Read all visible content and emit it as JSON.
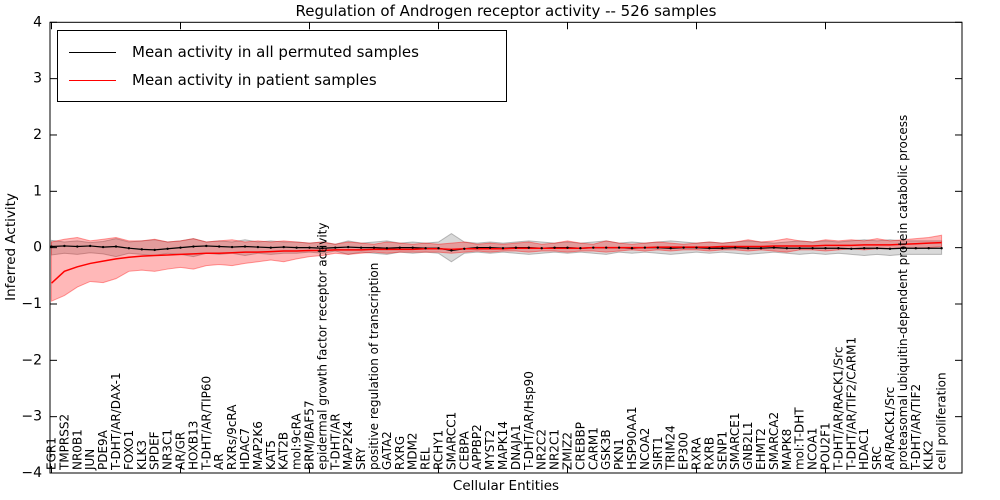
{
  "title": "Regulation of Androgen receptor activity -- 526 samples",
  "axes": {
    "xlabel": "Cellular Entities",
    "ylabel": "Inferred Activity"
  },
  "legend": {
    "items": [
      {
        "label": "Mean activity in all permuted samples",
        "color": "#000000"
      },
      {
        "label": "Mean activity in patient samples",
        "color": "#ff0000"
      }
    ],
    "position": "upper left"
  },
  "chart_data": {
    "type": "line",
    "title": "Regulation of Androgen receptor activity -- 526 samples",
    "xlabel": "Cellular Entities",
    "ylabel": "Inferred Activity",
    "ylim": [
      -4,
      4
    ],
    "yticks": [
      4,
      3,
      2,
      1,
      0,
      -1,
      -2,
      -3,
      -4
    ],
    "ytick_labels": [
      "4",
      "3",
      "2",
      "1",
      "0",
      "−1",
      "−2",
      "−3",
      "−4"
    ],
    "grid": false,
    "legend_position": "upper left",
    "categories": [
      "EGR1",
      "TMPRSS2",
      "NR0B1",
      "JUN",
      "PDE9A",
      "T-DHT/AR/DAX-1",
      "FOXO1",
      "KLK3",
      "SPDEF",
      "NR3C1",
      "AR/GR",
      "HOXB13",
      "T-DHT/AR/TIP60",
      "AR",
      "RXRs/9cRA",
      "HDAC7",
      "MAP2K6",
      "KAT5",
      "KAT2B",
      "mol:9cRA",
      "BRM/BAF57",
      "epidermal growth factor receptor activity",
      "T-DHT/AR",
      "MAP2K4",
      "SRY",
      "positive regulation of transcription",
      "GATA2",
      "RXRG",
      "MDM2",
      "REL",
      "RCHY1",
      "SMARCC1",
      "CEBPA",
      "APPBP2",
      "MYST2",
      "MAPK14",
      "DNAJA1",
      "T-DHT/AR/Hsp90",
      "NR2C2",
      "NR2C1",
      "ZMIZ2",
      "CREBBP",
      "CARM1",
      "GSK3B",
      "PKN1",
      "HSP90AA1",
      "NCOA2",
      "SIRT1",
      "TRIM24",
      "EP300",
      "RXRA",
      "RXRB",
      "SENP1",
      "SMARCE1",
      "GNB2L1",
      "EHMT2",
      "SMARCA2",
      "MAPK8",
      "mol:T-DHT",
      "NCOA1",
      "POU2F1",
      "T-DHT/AR/RACK1/Src",
      "T-DHT/AR/TIF2/CARM1",
      "HDAC1",
      "SRC",
      "AR/RACK1/Src",
      "proteasomal ubiquitin-dependent protein catabolic process",
      "T-DHT/AR/TIF2",
      "KLK2",
      "cell proliferation"
    ],
    "series": [
      {
        "name": "Mean activity in all permuted samples",
        "color": "#000000",
        "line_width": 1.2,
        "marker": true,
        "band_color": "rgba(128,128,128,0.30)",
        "band_edge": "rgba(110,110,110,0.45)",
        "values": [
          0.02,
          0.03,
          0.02,
          0.03,
          0.01,
          0.02,
          -0.01,
          -0.03,
          -0.04,
          -0.02,
          0.0,
          0.02,
          0.03,
          0.02,
          0.01,
          0.02,
          0.01,
          0.0,
          0.01,
          0.0,
          0.0,
          -0.01,
          0.0,
          0.01,
          0.0,
          0.0,
          -0.01,
          0.0,
          0.0,
          -0.01,
          -0.01,
          -0.05,
          -0.02,
          0.0,
          0.0,
          -0.01,
          0.0,
          0.0,
          -0.01,
          0.0,
          0.0,
          -0.01,
          0.0,
          0.0,
          0.0,
          -0.01,
          0.0,
          0.0,
          -0.01,
          0.0,
          0.0,
          -0.01,
          -0.01,
          0.0,
          -0.01,
          -0.01,
          0.0,
          -0.01,
          -0.01,
          -0.01,
          -0.01,
          -0.01,
          -0.02,
          -0.01,
          -0.01,
          -0.02,
          -0.01,
          -0.01,
          -0.01,
          -0.01
        ],
        "band_hi": [
          0.13,
          0.1,
          0.12,
          0.09,
          0.11,
          0.16,
          0.1,
          0.12,
          0.14,
          0.1,
          0.12,
          0.16,
          0.1,
          0.12,
          0.1,
          0.14,
          0.1,
          0.12,
          0.1,
          0.1,
          0.08,
          0.1,
          0.06,
          0.12,
          0.08,
          0.1,
          0.12,
          0.08,
          0.1,
          0.08,
          0.1,
          0.25,
          0.1,
          0.08,
          0.1,
          0.08,
          0.1,
          0.12,
          0.1,
          0.08,
          0.1,
          0.08,
          0.1,
          0.12,
          0.08,
          0.1,
          0.08,
          0.1,
          0.12,
          0.1,
          0.08,
          0.1,
          0.08,
          0.1,
          0.12,
          0.1,
          0.08,
          0.1,
          0.12,
          0.1,
          0.12,
          0.1,
          0.12,
          0.14,
          0.12,
          0.14,
          0.12,
          0.12,
          0.12,
          0.12
        ],
        "band_lo": [
          -0.13,
          -0.1,
          -0.12,
          -0.09,
          -0.11,
          -0.16,
          -0.1,
          -0.12,
          -0.14,
          -0.1,
          -0.12,
          -0.16,
          -0.1,
          -0.12,
          -0.1,
          -0.14,
          -0.1,
          -0.12,
          -0.1,
          -0.1,
          -0.08,
          -0.1,
          -0.06,
          -0.12,
          -0.08,
          -0.1,
          -0.12,
          -0.08,
          -0.1,
          -0.08,
          -0.1,
          -0.25,
          -0.1,
          -0.08,
          -0.1,
          -0.08,
          -0.1,
          -0.12,
          -0.1,
          -0.08,
          -0.1,
          -0.08,
          -0.1,
          -0.12,
          -0.08,
          -0.1,
          -0.08,
          -0.1,
          -0.12,
          -0.1,
          -0.08,
          -0.1,
          -0.08,
          -0.1,
          -0.12,
          -0.1,
          -0.08,
          -0.1,
          -0.12,
          -0.1,
          -0.12,
          -0.1,
          -0.12,
          -0.14,
          -0.12,
          -0.14,
          -0.12,
          -0.12,
          -0.12,
          -0.12
        ]
      },
      {
        "name": "Mean activity in patient samples",
        "color": "#ff0000",
        "line_width": 1.5,
        "marker": false,
        "band_color": "rgba(255,0,0,0.28)",
        "band_edge": "rgba(255,0,0,0.38)",
        "values": [
          -0.63,
          -0.42,
          -0.34,
          -0.28,
          -0.24,
          -0.2,
          -0.17,
          -0.15,
          -0.14,
          -0.13,
          -0.12,
          -0.11,
          -0.1,
          -0.1,
          -0.09,
          -0.08,
          -0.08,
          -0.07,
          -0.06,
          -0.06,
          -0.05,
          -0.05,
          -0.04,
          -0.04,
          -0.04,
          -0.03,
          -0.03,
          -0.03,
          -0.03,
          -0.02,
          -0.02,
          -0.03,
          -0.02,
          -0.02,
          -0.02,
          -0.02,
          -0.01,
          -0.01,
          -0.01,
          -0.01,
          -0.01,
          -0.01,
          0.0,
          0.0,
          0.0,
          0.0,
          0.0,
          0.01,
          0.01,
          0.01,
          0.01,
          0.01,
          0.02,
          0.02,
          0.02,
          0.02,
          0.03,
          0.03,
          0.03,
          0.03,
          0.04,
          0.04,
          0.04,
          0.05,
          0.05,
          0.05,
          0.06,
          0.07,
          0.08,
          0.09
        ],
        "band_hi": [
          0.1,
          0.15,
          0.18,
          0.12,
          0.15,
          0.18,
          0.12,
          0.12,
          0.15,
          0.1,
          0.12,
          0.16,
          0.1,
          0.12,
          0.14,
          0.1,
          0.12,
          0.1,
          0.12,
          0.1,
          0.08,
          0.1,
          0.06,
          0.1,
          0.08,
          0.06,
          0.1,
          0.08,
          0.06,
          0.08,
          0.06,
          0.08,
          0.1,
          0.06,
          0.08,
          0.06,
          0.08,
          0.1,
          0.06,
          0.08,
          0.12,
          0.08,
          0.06,
          0.12,
          0.08,
          0.06,
          0.08,
          0.1,
          0.08,
          0.06,
          0.08,
          0.1,
          0.08,
          0.1,
          0.14,
          0.1,
          0.12,
          0.16,
          0.12,
          0.1,
          0.14,
          0.12,
          0.14,
          0.12,
          0.16,
          0.12,
          0.14,
          0.16,
          0.18,
          0.22
        ],
        "band_lo": [
          -0.95,
          -0.85,
          -0.7,
          -0.6,
          -0.62,
          -0.55,
          -0.42,
          -0.4,
          -0.42,
          -0.38,
          -0.35,
          -0.38,
          -0.32,
          -0.3,
          -0.32,
          -0.28,
          -0.25,
          -0.22,
          -0.25,
          -0.2,
          -0.16,
          -0.14,
          -0.1,
          -0.12,
          -0.1,
          -0.08,
          -0.1,
          -0.08,
          -0.08,
          -0.08,
          -0.08,
          -0.1,
          -0.08,
          -0.06,
          -0.08,
          -0.06,
          -0.06,
          -0.08,
          -0.06,
          -0.06,
          -0.08,
          -0.06,
          -0.06,
          -0.08,
          -0.06,
          -0.04,
          -0.06,
          -0.04,
          -0.06,
          -0.04,
          -0.04,
          -0.06,
          -0.04,
          -0.04,
          -0.06,
          -0.04,
          -0.06,
          -0.08,
          -0.04,
          -0.04,
          -0.06,
          -0.04,
          -0.02,
          -0.04,
          -0.02,
          -0.02,
          0.0,
          -0.02,
          0.0,
          0.02
        ]
      }
    ]
  }
}
